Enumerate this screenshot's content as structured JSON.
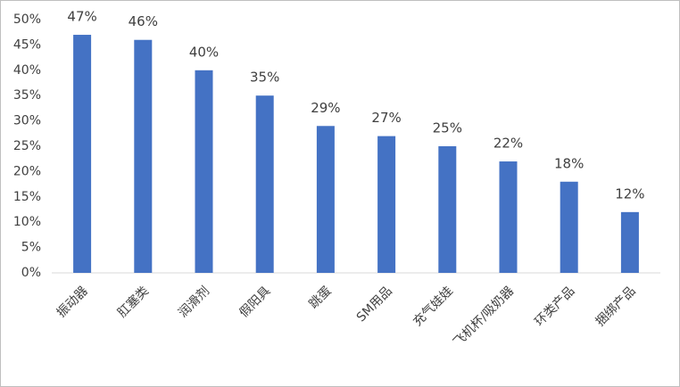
{
  "chart_data": {
    "type": "bar",
    "categories": [
      "振动器",
      "肛塞类",
      "润滑剂",
      "假阳具",
      "跳蛋",
      "SM用品",
      "充气娃娃",
      "飞机杯/吸奶器",
      "环类产品",
      "捆绑产品"
    ],
    "values": [
      47,
      46,
      40,
      35,
      29,
      27,
      25,
      22,
      18,
      12
    ],
    "value_labels": [
      "47%",
      "46%",
      "40%",
      "35%",
      "29%",
      "27%",
      "25%",
      "22%",
      "18%",
      "12%"
    ],
    "color": "#4472c4",
    "ylim": [
      0,
      50
    ],
    "yticks": [
      {
        "value": 0,
        "label": "0%"
      },
      {
        "value": 5,
        "label": "5%"
      },
      {
        "value": 10,
        "label": "10%"
      },
      {
        "value": 15,
        "label": "15%"
      },
      {
        "value": 20,
        "label": "20%"
      },
      {
        "value": 25,
        "label": "25%"
      },
      {
        "value": 30,
        "label": "30%"
      },
      {
        "value": 35,
        "label": "35%"
      },
      {
        "value": 40,
        "label": "40%"
      },
      {
        "value": 45,
        "label": "45%"
      },
      {
        "value": 50,
        "label": "50%"
      }
    ],
    "grid": false
  }
}
